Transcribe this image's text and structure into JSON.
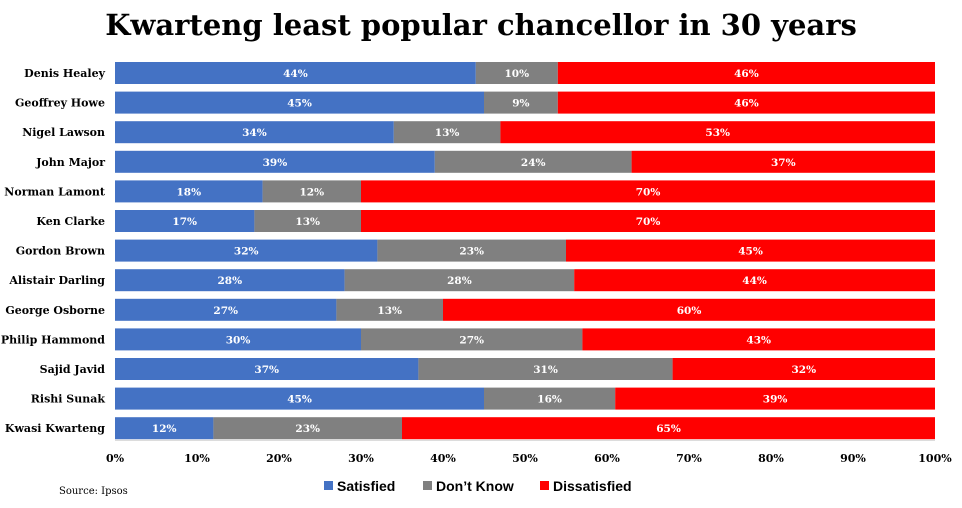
{
  "chart_data": {
    "type": "bar",
    "orientation": "horizontal",
    "stacked": true,
    "title": "Kwarteng least popular chancellor in 30 years",
    "categories": [
      "Denis Healey",
      "Geoffrey Howe",
      "Nigel Lawson",
      "John Major",
      "Norman Lamont",
      "Ken Clarke",
      "Gordon Brown",
      "Alistair Darling",
      "George Osborne",
      "Philip Hammond",
      "Sajid Javid",
      "Rishi Sunak",
      "Kwasi Kwarteng"
    ],
    "series": [
      {
        "name": "Satisfied",
        "color": "#4472c4",
        "values": [
          44,
          45,
          34,
          39,
          18,
          17,
          32,
          28,
          27,
          30,
          37,
          45,
          12
        ]
      },
      {
        "name": "Don’t Know",
        "color": "#808080",
        "values": [
          10,
          9,
          13,
          24,
          12,
          13,
          23,
          28,
          13,
          27,
          31,
          16,
          23
        ]
      },
      {
        "name": "Dissatisfied",
        "color": "#ff0000",
        "values": [
          46,
          46,
          53,
          37,
          70,
          70,
          45,
          44,
          60,
          43,
          32,
          39,
          65
        ]
      }
    ],
    "value_suffix": "%",
    "xlim": [
      0,
      100
    ],
    "xticks": [
      "0%",
      "10%",
      "20%",
      "30%",
      "40%",
      "50%",
      "60%",
      "70%",
      "80%",
      "90%",
      "100%"
    ],
    "legend_position": "bottom",
    "grid": false,
    "source": "Source: Ipsos"
  }
}
